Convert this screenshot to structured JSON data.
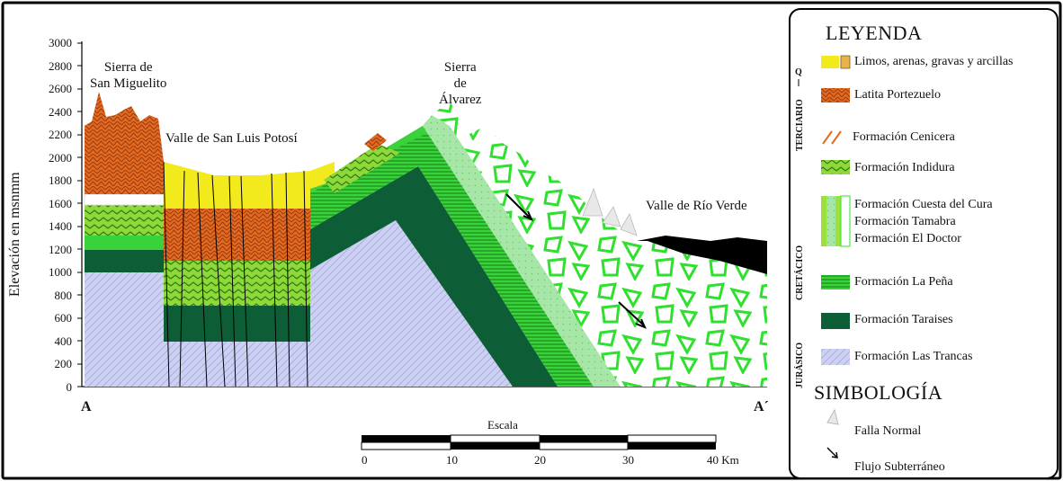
{
  "section": {
    "start_label": "A",
    "end_label": "A´",
    "y_axis_label": "Elevación en msnmm",
    "y_ticks": [
      "3000",
      "2800",
      "2600",
      "2400",
      "2200",
      "2000",
      "1800",
      "1600",
      "1400",
      "1200",
      "1000",
      "800",
      "600",
      "400",
      "200",
      "0"
    ],
    "places": {
      "sierra_san_miguelito": "Sierra de\nSan Miguelito",
      "valle_slp": "Valle de San Luis Potosí",
      "sierra_alvarez": "Sierra\nde\nÁlvarez",
      "valle_rio_verde": "Valle de Río Verde"
    }
  },
  "scale": {
    "title": "Escala",
    "labels": [
      "0",
      "10",
      "20",
      "30",
      "40 Km"
    ]
  },
  "legend": {
    "title": "LEYENDA",
    "eras": {
      "q": "Q",
      "terciario": "TERCIARIO",
      "cretacico": "CRETÁCICO",
      "jurasico": "JURÁSICO"
    },
    "items": [
      {
        "label": "Limos, arenas, gravas y arcillas",
        "color": "#f2ea1c"
      },
      {
        "label": "Latita Portezuelo",
        "color": "#e0661e"
      },
      {
        "label": "Formación Cenicera",
        "color": "#ffffff"
      },
      {
        "label": "Formación Indidura",
        "color": "#8ed82a"
      },
      {
        "label": "Formación Cuesta del Cura",
        "color": "#9be13a"
      },
      {
        "label": "Formación Tamabra",
        "color": "#a8e6a8"
      },
      {
        "label": "Formación El Doctor",
        "color": "#3fd23f"
      },
      {
        "label": "Formación La Peña",
        "color": "#2ecc2e"
      },
      {
        "label": "Formación Taraises",
        "color": "#0d5e36"
      },
      {
        "label": "Formación Las Trancas",
        "color": "#c8cdf0"
      }
    ],
    "symbology_title": "SIMBOLOGÍA",
    "symbols": [
      {
        "label": "Falla Normal",
        "icon": "fault-icon"
      },
      {
        "label": "Flujo Subterráneo",
        "icon": "flow-arrow-icon"
      }
    ]
  }
}
